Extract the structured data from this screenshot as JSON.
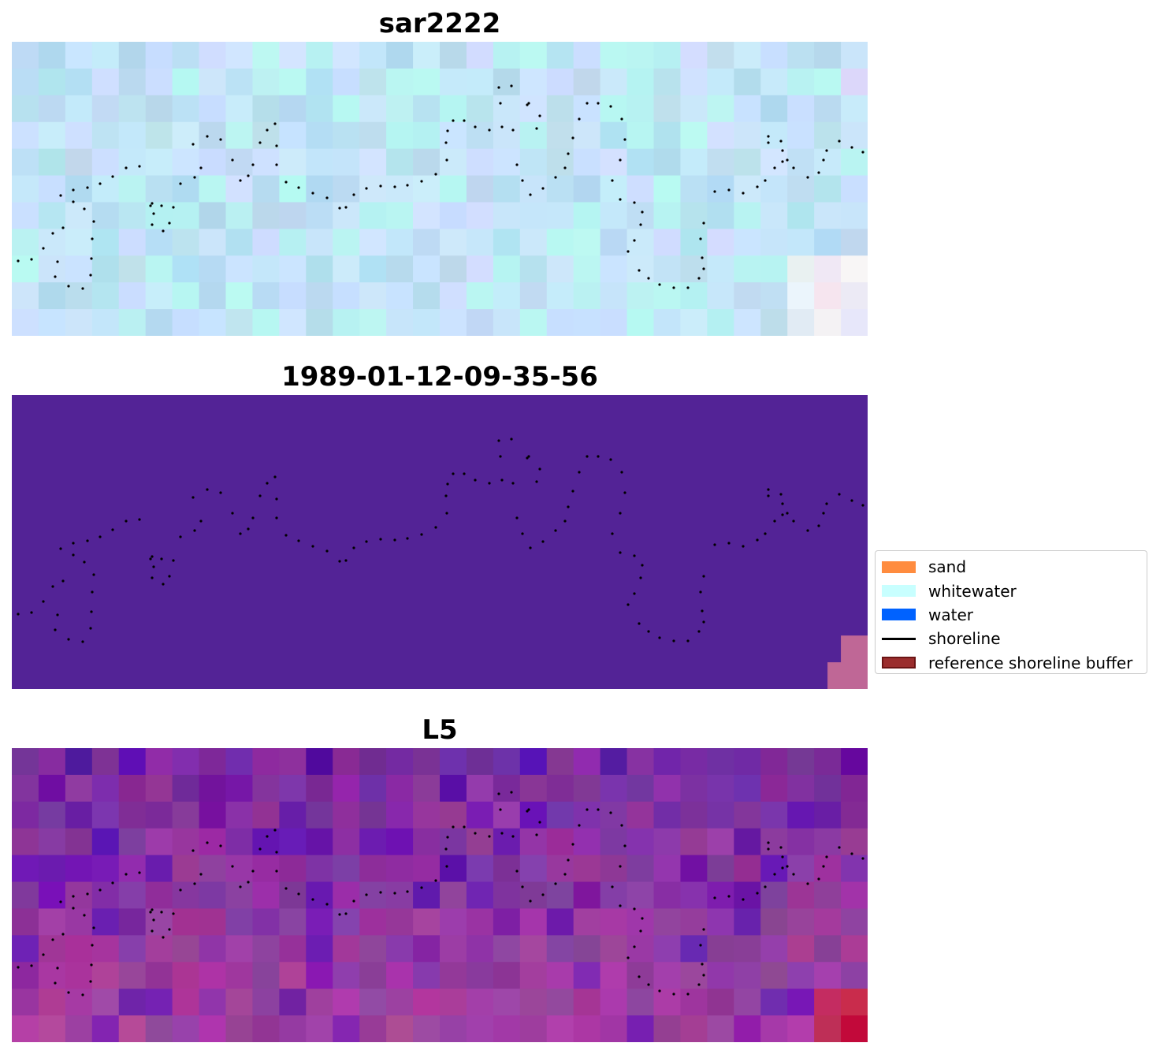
{
  "panels": [
    {
      "title": "sar2222"
    },
    {
      "title": "1989-01-12-09-35-56"
    },
    {
      "title": "L5"
    }
  ],
  "legend": {
    "placement": "right",
    "items": [
      {
        "label": "sand",
        "type": "patch",
        "color": "#ff8c3f"
      },
      {
        "label": "whitewater",
        "type": "patch",
        "color": "#c8ffff"
      },
      {
        "label": "water",
        "type": "patch",
        "color": "#0062ff"
      },
      {
        "label": "shoreline",
        "type": "line",
        "color": "#000000"
      },
      {
        "label": "reference shoreline buffer",
        "type": "patch",
        "color": "#9b2d2d",
        "edge": "#6b1414"
      }
    ]
  },
  "colors": {
    "sar_base": "#b8def0",
    "classified_background": "#532396",
    "classified_corner": "#bf6796",
    "l5_base": "#7e2fa0",
    "l5_corner": "#c2093a",
    "shoreline_dots": "#000000"
  }
}
